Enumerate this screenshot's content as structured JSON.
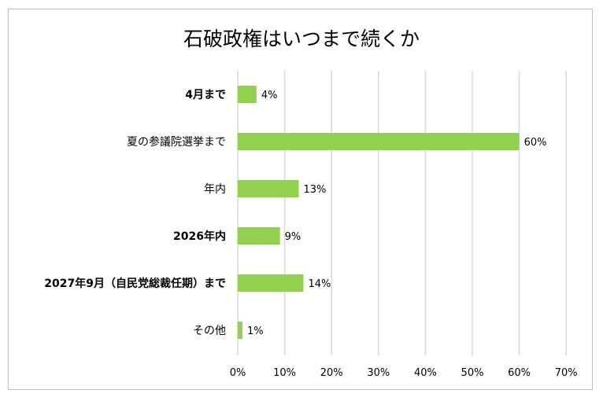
{
  "chart_data": {
    "type": "bar",
    "orientation": "horizontal",
    "title": "石破政権はいつまで続くか",
    "categories": [
      "4月まで",
      "夏の参議院選挙まで",
      "年内",
      "2026年内",
      "2027年9月（自民党総裁任期）まで",
      "その他"
    ],
    "values": [
      4,
      60,
      13,
      9,
      14,
      1
    ],
    "data_labels": [
      "4%",
      "60%",
      "13%",
      "9%",
      "14%",
      "1%"
    ],
    "xlim": [
      0,
      70
    ],
    "ticks": [
      0,
      10,
      20,
      30,
      40,
      50,
      60,
      70
    ],
    "tick_labels": [
      "0%",
      "10%",
      "20%",
      "30%",
      "40%",
      "50%",
      "60%",
      "70%"
    ],
    "grid": true,
    "legend": "none",
    "bar_color": "#92d050",
    "grid_color": "#d9d9d9"
  }
}
